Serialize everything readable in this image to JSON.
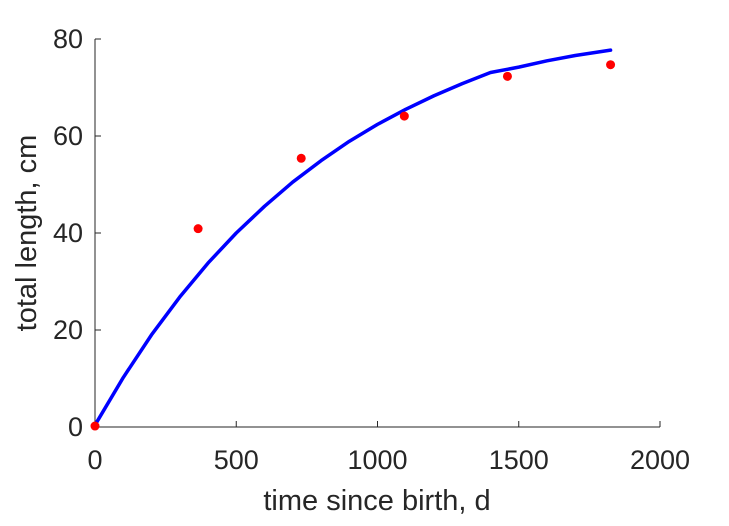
{
  "chart_data": {
    "type": "line",
    "title": "",
    "xlabel": "time since birth, d",
    "ylabel": "total length, cm",
    "xlim": [
      0,
      2000
    ],
    "ylim": [
      0,
      80
    ],
    "xticks": [
      0,
      500,
      1000,
      1500,
      2000
    ],
    "yticks": [
      0,
      20,
      40,
      60,
      80
    ],
    "grid": false,
    "legend": "none",
    "series": [
      {
        "kind": "line",
        "color": "#0000ff",
        "x": [
          0,
          100,
          200,
          300,
          400,
          500,
          600,
          700,
          800,
          900,
          1000,
          1100,
          1200,
          1300,
          1400,
          1500,
          1600,
          1700,
          1825
        ],
        "y": [
          0.4,
          10.2,
          19.0,
          26.8,
          33.8,
          40.0,
          45.5,
          50.5,
          54.9,
          58.9,
          62.4,
          65.5,
          68.3,
          70.8,
          73.1,
          74.2,
          75.5,
          76.6,
          77.7
        ]
      },
      {
        "kind": "scatter",
        "color": "#ff0000",
        "x": [
          0,
          365,
          730,
          1095,
          1460,
          1825
        ],
        "y": [
          0.2,
          40.9,
          55.4,
          64.1,
          72.3,
          74.7
        ]
      }
    ]
  }
}
